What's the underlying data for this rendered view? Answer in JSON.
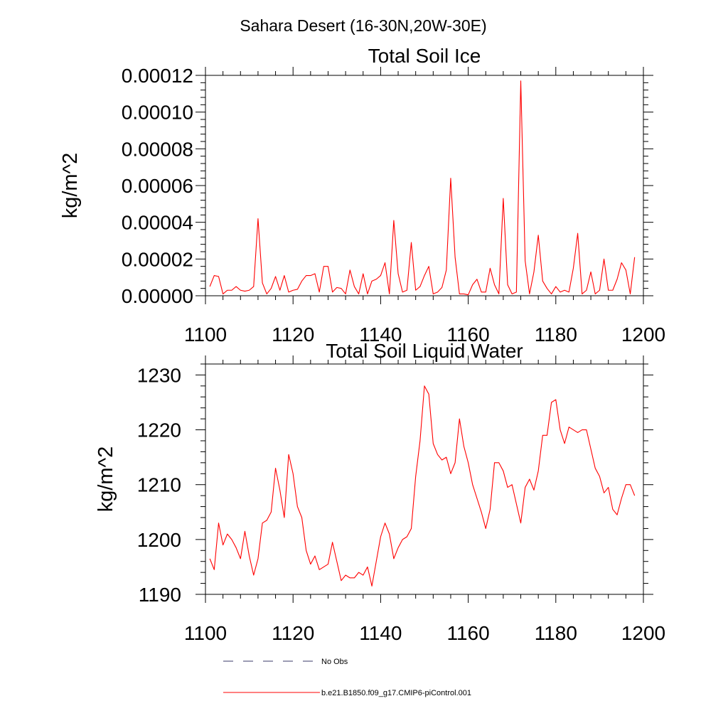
{
  "title": "Sahara Desert (16-30N,20W-30E)",
  "legend": {
    "items": [
      {
        "label": "No Obs",
        "style": "dashed",
        "color": "#3a3a6a"
      },
      {
        "label": "b.e21.B1850.f09_g17.CMIP6-piControl.001",
        "style": "solid",
        "color": "#ff0000"
      }
    ]
  },
  "colors": {
    "series": "#ff0000",
    "axes": "#000000",
    "no_obs": "#3a3a6a"
  },
  "chart_data": [
    {
      "type": "line",
      "title": "Total Soil Ice",
      "xlabel": "",
      "ylabel": "kg/m^2",
      "xlim": [
        1100,
        1200
      ],
      "ylim": [
        0,
        0.00012
      ],
      "grid": false,
      "xticks": [
        1100,
        1120,
        1140,
        1160,
        1180,
        1200
      ],
      "xtick_labels": [
        "1100",
        "1120",
        "1140",
        "1160",
        "1180",
        "1200"
      ],
      "yticks": [
        0,
        2e-05,
        4e-05,
        6e-05,
        8e-05,
        0.0001,
        0.00012
      ],
      "ytick_labels": [
        "0.00000",
        "0.00002",
        "0.00004",
        "0.00006",
        "0.00008",
        "0.00010",
        "0.00012"
      ],
      "series": [
        {
          "color": "#ff0000",
          "x": [
            1101,
            1102,
            1103,
            1104,
            1105,
            1106,
            1107,
            1108,
            1109,
            1110,
            1111,
            1112,
            1113,
            1114,
            1115,
            1116,
            1117,
            1118,
            1119,
            1120,
            1121,
            1122,
            1123,
            1124,
            1125,
            1126,
            1127,
            1128,
            1129,
            1130,
            1131,
            1132,
            1133,
            1134,
            1135,
            1136,
            1137,
            1138,
            1139,
            1140,
            1141,
            1142,
            1143,
            1144,
            1145,
            1146,
            1147,
            1148,
            1149,
            1150,
            1151,
            1152,
            1153,
            1154,
            1155,
            1156,
            1157,
            1158,
            1159,
            1160,
            1161,
            1162,
            1163,
            1164,
            1165,
            1166,
            1167,
            1168,
            1169,
            1170,
            1171,
            1172,
            1173,
            1174,
            1175,
            1176,
            1177,
            1178,
            1179,
            1180,
            1181,
            1182,
            1183,
            1184,
            1185,
            1186,
            1187,
            1188,
            1189,
            1190,
            1191,
            1192,
            1193,
            1194,
            1195,
            1196,
            1197,
            1198
          ],
          "y": [
            5e-06,
            1.1e-05,
            1.05e-05,
            1e-06,
            3e-06,
            3e-06,
            5e-06,
            3e-06,
            2.5e-06,
            3e-06,
            5e-06,
            4.2e-05,
            7e-06,
            1e-06,
            4e-06,
            1.05e-05,
            3e-06,
            1.1e-05,
            2e-06,
            3e-06,
            3.5e-06,
            8e-06,
            1.1e-05,
            1.1e-05,
            1.2e-05,
            2e-06,
            1.6e-05,
            1.6e-05,
            2e-06,
            4.5e-06,
            4e-06,
            1e-06,
            1.4e-05,
            5e-06,
            1e-06,
            1.2e-05,
            1e-06,
            8e-06,
            9e-06,
            1.1e-05,
            1.8e-05,
            1e-06,
            4.1e-05,
            1.2e-05,
            2e-06,
            3e-06,
            2.9e-05,
            3e-06,
            5e-06,
            1.1e-05,
            1.6e-05,
            1e-06,
            2e-06,
            4.5e-06,
            1.4e-05,
            6.4e-05,
            2.1e-05,
            1e-06,
            1e-06,
            5e-07,
            6e-06,
            9e-06,
            2e-06,
            2e-06,
            1.5e-05,
            6e-06,
            1e-06,
            5.3e-05,
            6e-06,
            1e-06,
            2e-06,
            0.000117,
            1.9e-05,
            1e-06,
            1.3e-05,
            3.3e-05,
            8e-06,
            4e-06,
            1e-06,
            5e-06,
            2e-06,
            3e-06,
            2e-06,
            1.5e-05,
            3.4e-05,
            1e-06,
            3e-06,
            1.3e-05,
            1e-06,
            3e-06,
            2e-05,
            3e-06,
            3e-06,
            9e-06,
            1.8e-05,
            1.4e-05,
            1e-06,
            2.1e-05
          ]
        }
      ]
    },
    {
      "type": "line",
      "title": "Total Soil Liquid Water",
      "xlabel": "",
      "ylabel": "kg/m^2",
      "xlim": [
        1100,
        1200
      ],
      "ylim": [
        1190,
        1232
      ],
      "grid": false,
      "xticks": [
        1100,
        1120,
        1140,
        1160,
        1180,
        1200
      ],
      "xtick_labels": [
        "1100",
        "1120",
        "1140",
        "1160",
        "1180",
        "1200"
      ],
      "yticks": [
        1190,
        1200,
        1210,
        1220,
        1230
      ],
      "ytick_labels": [
        "1190",
        "1200",
        "1210",
        "1220",
        "1230"
      ],
      "series": [
        {
          "color": "#ff0000",
          "x": [
            1101,
            1102,
            1103,
            1104,
            1105,
            1106,
            1107,
            1108,
            1109,
            1110,
            1111,
            1112,
            1113,
            1114,
            1115,
            1116,
            1117,
            1118,
            1119,
            1120,
            1121,
            1122,
            1123,
            1124,
            1125,
            1126,
            1127,
            1128,
            1129,
            1130,
            1131,
            1132,
            1133,
            1134,
            1135,
            1136,
            1137,
            1138,
            1139,
            1140,
            1141,
            1142,
            1143,
            1144,
            1145,
            1146,
            1147,
            1148,
            1149,
            1150,
            1151,
            1152,
            1153,
            1154,
            1155,
            1156,
            1157,
            1158,
            1159,
            1160,
            1161,
            1162,
            1163,
            1164,
            1165,
            1166,
            1167,
            1168,
            1169,
            1170,
            1171,
            1172,
            1173,
            1174,
            1175,
            1176,
            1177,
            1178,
            1179,
            1180,
            1181,
            1182,
            1183,
            1184,
            1185,
            1186,
            1187,
            1188,
            1189,
            1190,
            1191,
            1192,
            1193,
            1194,
            1195,
            1196,
            1197,
            1198
          ],
          "y": [
            1196.5,
            1194.5,
            1203,
            1199,
            1201,
            1200,
            1198.5,
            1196.5,
            1201.5,
            1197,
            1193.5,
            1196.5,
            1203,
            1203.5,
            1205,
            1213,
            1209,
            1204,
            1215.5,
            1212,
            1206,
            1204,
            1198,
            1195.5,
            1197,
            1194.5,
            1195,
            1195.5,
            1199.5,
            1196,
            1192.5,
            1193.5,
            1193,
            1193,
            1194,
            1193.5,
            1195,
            1191.5,
            1196,
            1200.5,
            1203,
            1201,
            1196.5,
            1198.5,
            1200,
            1200.5,
            1202,
            1211.5,
            1218,
            1228,
            1226.5,
            1217.5,
            1215.5,
            1214.5,
            1215,
            1212,
            1214,
            1222,
            1217,
            1214,
            1210,
            1207.5,
            1205,
            1202,
            1205.5,
            1214,
            1214,
            1212.5,
            1209.5,
            1210,
            1206.5,
            1203,
            1209.5,
            1211,
            1209,
            1212.5,
            1219,
            1219,
            1225,
            1225.5,
            1220,
            1217.5,
            1220.5,
            1220,
            1219.5,
            1220,
            1220,
            1216.5,
            1213,
            1211.5,
            1208.5,
            1209.5,
            1205.5,
            1204.5,
            1207.5,
            1210,
            1210,
            1208
          ]
        }
      ]
    }
  ]
}
